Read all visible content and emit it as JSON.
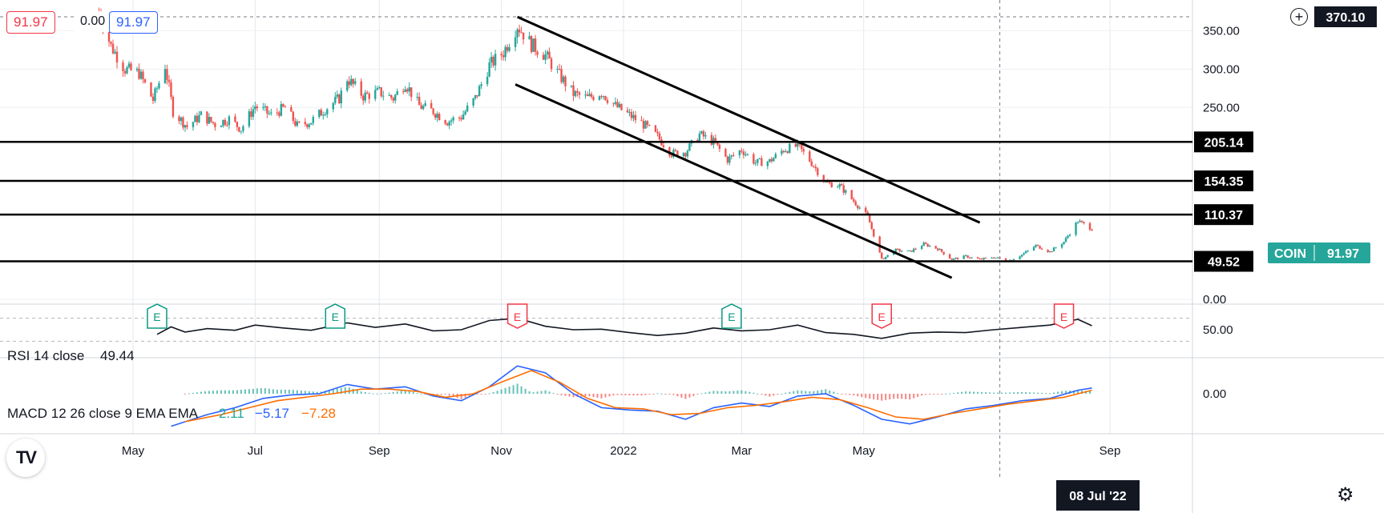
{
  "legend": {
    "price_red": "91.97",
    "price_zero": "0.00",
    "price_blue": "91.97",
    "rsi_label": "RSI 14 close",
    "rsi_value": "49.44",
    "macd_label": "MACD 12 26 close 9 EMA EMA",
    "macd_hist_value": "2.11",
    "macd_value": "−5.17",
    "macd_signal_value": "−7.28"
  },
  "symbol": "COIN",
  "last_price": "91.97",
  "crosshair_date": "08 Jul '22",
  "crosshair_price": "370.10",
  "colors": {
    "up": "#26a69a",
    "down": "#ef5350",
    "rsi": "#131722",
    "macd": "#2962ff",
    "signal": "#ff6d00",
    "earnings_green": "#089981",
    "earnings_red": "#f23645"
  },
  "icons": {
    "logo": "tradingview-logo",
    "add": "plus-circle-icon",
    "settings": "gear-icon"
  },
  "chart_data": {
    "type": "candlestick",
    "price_axis": {
      "ticks": [
        0,
        250,
        300,
        350
      ],
      "tick_labels": [
        "0.00",
        "250.00",
        "300.00",
        "350.00"
      ]
    },
    "time_axis": {
      "labels": [
        "May",
        "Jul",
        "Sep",
        "Nov",
        "2022",
        "Mar",
        "May",
        "Sep"
      ],
      "dates": [
        "2021-05-01",
        "2021-07-01",
        "2021-09-01",
        "2021-11-01",
        "2022-01-01",
        "2022-03-01",
        "2022-05-01",
        "2022-09-01"
      ]
    },
    "horizontal_levels": [
      {
        "value": 205.14,
        "label": "205.14"
      },
      {
        "value": 154.35,
        "label": "154.35"
      },
      {
        "value": 110.37,
        "label": "110.37"
      },
      {
        "value": 49.52,
        "label": "49.52"
      }
    ],
    "trendlines": [
      {
        "from": [
          "2021-11-09",
          368
        ],
        "to": [
          "2022-06-28",
          100
        ]
      },
      {
        "from": [
          "2021-11-08",
          280
        ],
        "to": [
          "2022-06-14",
          28
        ]
      }
    ],
    "close_series": [
      [
        "2021-04-14",
        375
      ],
      [
        "2021-04-20",
        330
      ],
      [
        "2021-04-27",
        300
      ],
      [
        "2021-05-04",
        295
      ],
      [
        "2021-05-11",
        260
      ],
      [
        "2021-05-17",
        305
      ],
      [
        "2021-05-21",
        245
      ],
      [
        "2021-05-28",
        225
      ],
      [
        "2021-06-04",
        240
      ],
      [
        "2021-06-11",
        228
      ],
      [
        "2021-06-18",
        235
      ],
      [
        "2021-06-24",
        222
      ],
      [
        "2021-07-01",
        252
      ],
      [
        "2021-07-09",
        240
      ],
      [
        "2021-07-16",
        250
      ],
      [
        "2021-07-22",
        226
      ],
      [
        "2021-07-29",
        232
      ],
      [
        "2021-08-05",
        248
      ],
      [
        "2021-08-12",
        262
      ],
      [
        "2021-08-16",
        288
      ],
      [
        "2021-08-24",
        265
      ],
      [
        "2021-09-01",
        270
      ],
      [
        "2021-09-08",
        262
      ],
      [
        "2021-09-14",
        282
      ],
      [
        "2021-09-21",
        252
      ],
      [
        "2021-09-28",
        245
      ],
      [
        "2021-10-05",
        232
      ],
      [
        "2021-10-12",
        238
      ],
      [
        "2021-10-19",
        262
      ],
      [
        "2021-10-26",
        305
      ],
      [
        "2021-11-02",
        322
      ],
      [
        "2021-11-09",
        357
      ],
      [
        "2021-11-16",
        332
      ],
      [
        "2021-11-23",
        318
      ],
      [
        "2021-11-30",
        292
      ],
      [
        "2021-12-07",
        268
      ],
      [
        "2021-12-14",
        262
      ],
      [
        "2021-12-21",
        270
      ],
      [
        "2021-12-28",
        252
      ],
      [
        "2022-01-04",
        240
      ],
      [
        "2022-01-11",
        228
      ],
      [
        "2022-01-18",
        212
      ],
      [
        "2022-01-25",
        190
      ],
      [
        "2022-02-01",
        192
      ],
      [
        "2022-02-08",
        215
      ],
      [
        "2022-02-15",
        205
      ],
      [
        "2022-02-22",
        182
      ],
      [
        "2022-03-01",
        195
      ],
      [
        "2022-03-08",
        178
      ],
      [
        "2022-03-15",
        180
      ],
      [
        "2022-03-22",
        195
      ],
      [
        "2022-03-29",
        200
      ],
      [
        "2022-04-05",
        178
      ],
      [
        "2022-04-12",
        152
      ],
      [
        "2022-04-19",
        148
      ],
      [
        "2022-04-26",
        128
      ],
      [
        "2022-05-03",
        108
      ],
      [
        "2022-05-10",
        52
      ],
      [
        "2022-05-17",
        64
      ],
      [
        "2022-05-24",
        62
      ],
      [
        "2022-05-31",
        72
      ],
      [
        "2022-06-07",
        66
      ],
      [
        "2022-06-14",
        52
      ],
      [
        "2022-06-21",
        56
      ],
      [
        "2022-06-28",
        52
      ],
      [
        "2022-07-05",
        55
      ],
      [
        "2022-07-12",
        50
      ],
      [
        "2022-07-19",
        58
      ],
      [
        "2022-07-26",
        70
      ],
      [
        "2022-08-02",
        62
      ],
      [
        "2022-08-09",
        75
      ],
      [
        "2022-08-16",
        102
      ],
      [
        "2022-08-23",
        92
      ]
    ],
    "earnings_markers": [
      {
        "date": "2021-05-13",
        "label": "E",
        "color": "green"
      },
      {
        "date": "2021-08-10",
        "label": "E",
        "color": "green"
      },
      {
        "date": "2021-11-09",
        "label": "E",
        "color": "red"
      },
      {
        "date": "2022-02-24",
        "label": "E",
        "color": "green"
      },
      {
        "date": "2022-05-10",
        "label": "E",
        "color": "red"
      },
      {
        "date": "2022-08-09",
        "label": "E",
        "color": "red"
      }
    ],
    "rsi": {
      "ticks": [
        50
      ],
      "tick_labels": [
        "50.00"
      ],
      "series": [
        [
          "2021-05-13",
          42
        ],
        [
          "2021-05-20",
          55
        ],
        [
          "2021-05-27",
          46
        ],
        [
          "2021-06-07",
          52
        ],
        [
          "2021-06-21",
          49
        ],
        [
          "2021-07-01",
          58
        ],
        [
          "2021-07-15",
          53
        ],
        [
          "2021-07-29",
          49
        ],
        [
          "2021-08-16",
          62
        ],
        [
          "2021-08-30",
          54
        ],
        [
          "2021-09-14",
          60
        ],
        [
          "2021-09-28",
          48
        ],
        [
          "2021-10-12",
          50
        ],
        [
          "2021-10-26",
          66
        ],
        [
          "2021-11-09",
          70
        ],
        [
          "2021-11-23",
          56
        ],
        [
          "2021-12-07",
          50
        ],
        [
          "2021-12-21",
          51
        ],
        [
          "2022-01-04",
          45
        ],
        [
          "2022-01-18",
          40
        ],
        [
          "2022-02-01",
          44
        ],
        [
          "2022-02-15",
          53
        ],
        [
          "2022-03-01",
          48
        ],
        [
          "2022-03-15",
          50
        ],
        [
          "2022-03-29",
          58
        ],
        [
          "2022-04-12",
          45
        ],
        [
          "2022-04-26",
          42
        ],
        [
          "2022-05-10",
          35
        ],
        [
          "2022-05-24",
          44
        ],
        [
          "2022-06-07",
          46
        ],
        [
          "2022-06-21",
          45
        ],
        [
          "2022-07-05",
          50
        ],
        [
          "2022-07-19",
          54
        ],
        [
          "2022-08-02",
          58
        ],
        [
          "2022-08-16",
          68
        ],
        [
          "2022-08-23",
          57
        ]
      ]
    },
    "macd": {
      "ticks": [
        0
      ],
      "tick_labels": [
        "0.00"
      ],
      "macd": [
        [
          "2021-05-20",
          -28
        ],
        [
          "2021-06-07",
          -18
        ],
        [
          "2021-06-21",
          -12
        ],
        [
          "2021-07-05",
          -4
        ],
        [
          "2021-07-19",
          -1
        ],
        [
          "2021-08-02",
          0
        ],
        [
          "2021-08-16",
          8
        ],
        [
          "2021-08-30",
          4
        ],
        [
          "2021-09-14",
          6
        ],
        [
          "2021-09-28",
          -2
        ],
        [
          "2021-10-12",
          -6
        ],
        [
          "2021-10-26",
          6
        ],
        [
          "2021-11-09",
          24
        ],
        [
          "2021-11-23",
          18
        ],
        [
          "2021-12-07",
          0
        ],
        [
          "2021-12-21",
          -12
        ],
        [
          "2022-01-04",
          -14
        ],
        [
          "2022-01-18",
          -15
        ],
        [
          "2022-02-01",
          -22
        ],
        [
          "2022-02-15",
          -12
        ],
        [
          "2022-03-01",
          -8
        ],
        [
          "2022-03-15",
          -11
        ],
        [
          "2022-03-29",
          -2
        ],
        [
          "2022-04-12",
          0
        ],
        [
          "2022-04-26",
          -10
        ],
        [
          "2022-05-10",
          -22
        ],
        [
          "2022-05-24",
          -26
        ],
        [
          "2022-06-07",
          -20
        ],
        [
          "2022-06-21",
          -13
        ],
        [
          "2022-07-05",
          -10
        ],
        [
          "2022-07-19",
          -6
        ],
        [
          "2022-08-02",
          -4
        ],
        [
          "2022-08-16",
          3
        ],
        [
          "2022-08-23",
          5
        ]
      ],
      "signal": [
        [
          "2021-05-27",
          -24
        ],
        [
          "2021-06-14",
          -18
        ],
        [
          "2021-06-28",
          -12
        ],
        [
          "2021-07-12",
          -6
        ],
        [
          "2021-07-26",
          -3
        ],
        [
          "2021-08-09",
          0
        ],
        [
          "2021-08-23",
          4
        ],
        [
          "2021-09-06",
          4
        ],
        [
          "2021-09-20",
          2
        ],
        [
          "2021-10-04",
          -3
        ],
        [
          "2021-10-18",
          0
        ],
        [
          "2021-11-01",
          10
        ],
        [
          "2021-11-16",
          20
        ],
        [
          "2021-11-30",
          10
        ],
        [
          "2021-12-14",
          -4
        ],
        [
          "2021-12-28",
          -12
        ],
        [
          "2022-01-11",
          -13
        ],
        [
          "2022-01-25",
          -18
        ],
        [
          "2022-02-08",
          -17
        ],
        [
          "2022-02-22",
          -12
        ],
        [
          "2022-03-08",
          -10
        ],
        [
          "2022-03-22",
          -7
        ],
        [
          "2022-04-05",
          -3
        ],
        [
          "2022-04-19",
          -5
        ],
        [
          "2022-05-03",
          -12
        ],
        [
          "2022-05-17",
          -20
        ],
        [
          "2022-05-31",
          -22
        ],
        [
          "2022-06-14",
          -17
        ],
        [
          "2022-06-28",
          -13
        ],
        [
          "2022-07-12",
          -9
        ],
        [
          "2022-07-26",
          -6
        ],
        [
          "2022-08-09",
          -3
        ],
        [
          "2022-08-23",
          3
        ]
      ]
    }
  }
}
